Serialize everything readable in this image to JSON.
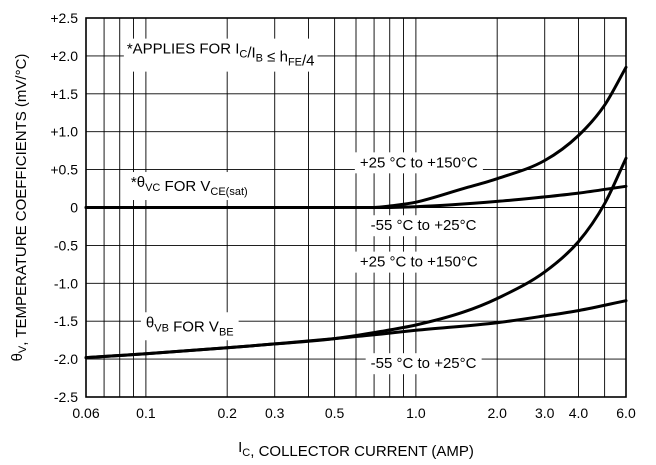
{
  "chart_data": {
    "type": "line",
    "title": "",
    "xlabel": {
      "main": "I",
      "sub": "C",
      "rest": ", COLLECTOR CURRENT (AMP)"
    },
    "ylabel": {
      "main": "θ",
      "sub": "V",
      "rest": ", TEMPERATURE COEFFICIENTS (mV/°C)"
    },
    "x_scale": "log",
    "xlim": [
      0.06,
      6.0
    ],
    "ylim": [
      -2.5,
      2.5
    ],
    "grid": true,
    "x_ticks": [
      {
        "value": 0.06,
        "label": "0.06"
      },
      {
        "value": 0.1,
        "label": "0.1"
      },
      {
        "value": 0.2,
        "label": "0.2"
      },
      {
        "value": 0.3,
        "label": "0.3"
      },
      {
        "value": 0.5,
        "label": "0.5"
      },
      {
        "value": 1.0,
        "label": "1.0"
      },
      {
        "value": 2.0,
        "label": "2.0"
      },
      {
        "value": 3.0,
        "label": "3.0"
      },
      {
        "value": 4.0,
        "label": "4.0"
      },
      {
        "value": 6.0,
        "label": "6.0"
      }
    ],
    "x_minor_grid": [
      0.07,
      0.08,
      0.09,
      0.4,
      0.6,
      0.7,
      0.8,
      0.9,
      5.0
    ],
    "y_ticks": [
      {
        "value": 2.5,
        "label": "+2.5"
      },
      {
        "value": 2.0,
        "label": "+2.0"
      },
      {
        "value": 1.5,
        "label": "+1.5"
      },
      {
        "value": 1.0,
        "label": "+1.0"
      },
      {
        "value": 0.5,
        "label": "+0.5"
      },
      {
        "value": 0.0,
        "label": "0"
      },
      {
        "value": -0.5,
        "label": "-0.5"
      },
      {
        "value": -1.0,
        "label": "-1.0"
      },
      {
        "value": -1.5,
        "label": "-1.5"
      },
      {
        "value": -2.0,
        "label": "-2.0"
      },
      {
        "value": -2.5,
        "label": "-2.5"
      }
    ],
    "series": [
      {
        "x": [
          0.06,
          0.5,
          0.7,
          0.8,
          1.0,
          1.5,
          2.0,
          3.0,
          4.0,
          5.0,
          6.0
        ],
        "y": [
          0.0,
          0.0,
          0.0,
          0.02,
          0.07,
          0.25,
          0.38,
          0.62,
          0.95,
          1.35,
          1.85
        ]
      },
      {
        "x": [
          0.06,
          0.5,
          0.7,
          1.0,
          2.0,
          3.0,
          4.0,
          6.0
        ],
        "y": [
          0.0,
          0.0,
          0.0,
          0.01,
          0.08,
          0.14,
          0.19,
          0.28
        ]
      },
      {
        "x": [
          0.06,
          0.1,
          0.2,
          0.3,
          0.5,
          0.7,
          1.0,
          1.5,
          2.0,
          3.0,
          4.0,
          5.0,
          6.0
        ],
        "y": [
          -1.98,
          -1.93,
          -1.85,
          -1.8,
          -1.73,
          -1.65,
          -1.55,
          -1.38,
          -1.2,
          -0.85,
          -0.45,
          0.05,
          0.65
        ]
      },
      {
        "x": [
          0.06,
          0.1,
          0.2,
          0.3,
          0.5,
          0.7,
          1.0,
          2.0,
          3.0,
          4.0,
          6.0
        ],
        "y": [
          -1.98,
          -1.93,
          -1.85,
          -1.8,
          -1.73,
          -1.68,
          -1.62,
          -1.52,
          -1.43,
          -1.36,
          -1.23
        ]
      }
    ],
    "annotations": [
      {
        "id": "applies",
        "parts": [
          [
            "*APPLIES FOR I",
            ""
          ],
          [
            "C",
            "sub"
          ],
          [
            "/I",
            ""
          ],
          [
            "B",
            "sub"
          ],
          [
            " ≤ h",
            ""
          ],
          [
            "FE",
            "sub"
          ],
          [
            "/4",
            ""
          ]
        ],
        "x": 0.085,
        "y": 2.03,
        "boxed": false
      },
      {
        "id": "theta-vc",
        "parts": [
          [
            "*θ",
            ""
          ],
          [
            "VC",
            "sub"
          ],
          [
            " FOR V",
            ""
          ],
          [
            "CE(sat)",
            "sub"
          ]
        ],
        "x": 0.088,
        "y": 0.27,
        "boxed": false
      },
      {
        "id": "theta-vb",
        "parts": [
          [
            "θ",
            ""
          ],
          [
            "VB",
            "sub"
          ],
          [
            " FOR V",
            ""
          ],
          [
            "BE",
            "sub"
          ]
        ],
        "x": 0.1,
        "y": -1.58,
        "boxed": true
      },
      {
        "id": "label-upper-vc",
        "parts": [
          [
            "+25 °C to +150°C",
            ""
          ]
        ],
        "x": 0.62,
        "y": 0.53,
        "boxed": true
      },
      {
        "id": "label-lower-vc",
        "parts": [
          [
            "-55 °C to +25°C",
            ""
          ]
        ],
        "x": 0.68,
        "y": -0.3,
        "boxed": true
      },
      {
        "id": "label-upper-vb",
        "parts": [
          [
            "+25 °C to +150°C",
            ""
          ]
        ],
        "x": 0.62,
        "y": -0.78,
        "boxed": true
      },
      {
        "id": "label-lower-vb",
        "parts": [
          [
            "-55 °C to +25°C",
            ""
          ]
        ],
        "x": 0.68,
        "y": -2.12,
        "boxed": true
      }
    ]
  }
}
